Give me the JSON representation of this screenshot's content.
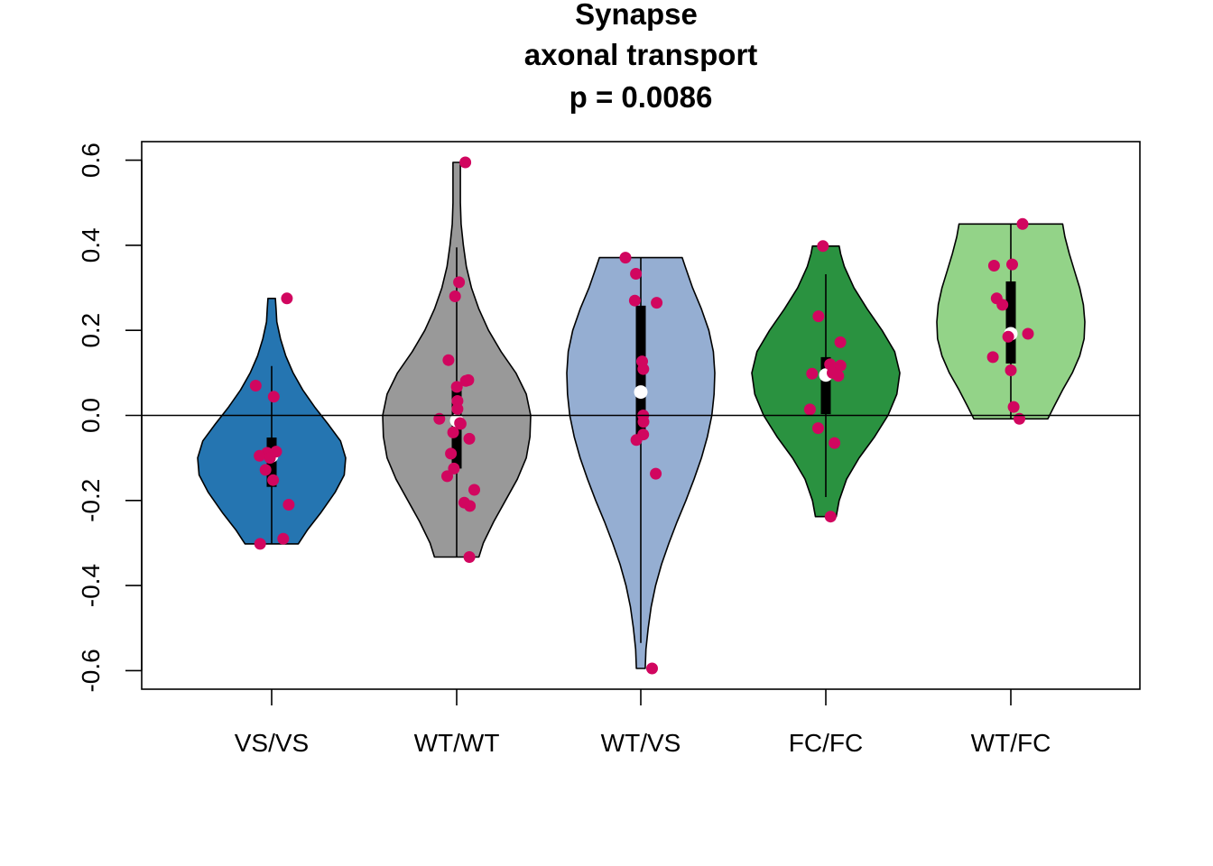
{
  "chart_data": {
    "type": "violin",
    "title_lines": [
      "Synapse",
      "axonal transport",
      "p = 0.0086"
    ],
    "xlabel": "",
    "ylabel": "",
    "ylim": [
      -0.645,
      0.645
    ],
    "yticks": [
      -0.6,
      -0.4,
      -0.2,
      0.0,
      0.2,
      0.4,
      0.6
    ],
    "ytick_labels": [
      "-0.6",
      "-0.4",
      "-0.2",
      "0.0",
      "0.2",
      "0.4",
      "0.6"
    ],
    "reference_line": 0.0,
    "point_color": "#D1065F",
    "categories": [
      "VS/VS",
      "WT/WT",
      "WT/VS",
      "FC/FC",
      "WT/FC"
    ],
    "groups": [
      {
        "name": "VS/VS",
        "color": "#2575B1",
        "range": [
          -0.302,
          0.275
        ],
        "q1": -0.168,
        "q3": -0.052,
        "median": -0.095,
        "whisker": [
          -0.302,
          0.116
        ],
        "density": [
          [
            -0.302,
            0.36
          ],
          [
            -0.27,
            0.48
          ],
          [
            -0.23,
            0.66
          ],
          [
            -0.18,
            0.86
          ],
          [
            -0.14,
            0.98
          ],
          [
            -0.1,
            1.0
          ],
          [
            -0.06,
            0.93
          ],
          [
            -0.02,
            0.76
          ],
          [
            0.02,
            0.58
          ],
          [
            0.06,
            0.42
          ],
          [
            0.1,
            0.29
          ],
          [
            0.14,
            0.19
          ],
          [
            0.18,
            0.12
          ],
          [
            0.22,
            0.07
          ],
          [
            0.25,
            0.06
          ],
          [
            0.275,
            0.05
          ]
        ],
        "points": [
          0.275,
          0.07,
          0.044,
          -0.088,
          -0.1,
          -0.085,
          -0.095,
          -0.128,
          -0.152,
          -0.21,
          -0.29,
          -0.302
        ]
      },
      {
        "name": "WT/WT",
        "color": "#999999",
        "range": [
          -0.333,
          0.595
        ],
        "q1": -0.125,
        "q3": 0.065,
        "median": -0.012,
        "whisker": [
          -0.333,
          0.395
        ],
        "density": [
          [
            -0.333,
            0.3
          ],
          [
            -0.3,
            0.36
          ],
          [
            -0.25,
            0.5
          ],
          [
            -0.2,
            0.66
          ],
          [
            -0.15,
            0.82
          ],
          [
            -0.1,
            0.94
          ],
          [
            -0.05,
            0.99
          ],
          [
            0.0,
            1.0
          ],
          [
            0.05,
            0.94
          ],
          [
            0.1,
            0.8
          ],
          [
            0.15,
            0.6
          ],
          [
            0.2,
            0.43
          ],
          [
            0.25,
            0.3
          ],
          [
            0.3,
            0.2
          ],
          [
            0.35,
            0.13
          ],
          [
            0.4,
            0.09
          ],
          [
            0.45,
            0.06
          ],
          [
            0.5,
            0.05
          ],
          [
            0.55,
            0.05
          ],
          [
            0.595,
            0.05
          ]
        ],
        "points": [
          0.595,
          0.313,
          0.28,
          0.13,
          0.083,
          0.081,
          0.067,
          0.034,
          0.015,
          -0.008,
          -0.018,
          -0.02,
          -0.04,
          -0.055,
          -0.09,
          -0.125,
          -0.143,
          -0.175,
          -0.205,
          -0.213,
          -0.333
        ]
      },
      {
        "name": "WT/VS",
        "color": "#95AED2",
        "range": [
          -0.595,
          0.371
        ],
        "q1": -0.05,
        "q3": 0.258,
        "median": 0.055,
        "whisker": [
          -0.535,
          0.371
        ],
        "density": [
          [
            -0.595,
            0.06
          ],
          [
            -0.55,
            0.07
          ],
          [
            -0.5,
            0.1
          ],
          [
            -0.45,
            0.14
          ],
          [
            -0.4,
            0.2
          ],
          [
            -0.35,
            0.28
          ],
          [
            -0.3,
            0.38
          ],
          [
            -0.25,
            0.49
          ],
          [
            -0.2,
            0.61
          ],
          [
            -0.15,
            0.72
          ],
          [
            -0.1,
            0.82
          ],
          [
            -0.05,
            0.9
          ],
          [
            0.0,
            0.96
          ],
          [
            0.05,
            0.99
          ],
          [
            0.1,
            1.0
          ],
          [
            0.15,
            0.98
          ],
          [
            0.2,
            0.92
          ],
          [
            0.25,
            0.82
          ],
          [
            0.3,
            0.7
          ],
          [
            0.35,
            0.6
          ],
          [
            0.371,
            0.56
          ]
        ],
        "points": [
          0.371,
          0.333,
          0.27,
          0.265,
          0.127,
          0.109,
          0.0,
          -0.015,
          -0.045,
          -0.058,
          -0.137,
          -0.595
        ]
      },
      {
        "name": "FC/FC",
        "color": "#2A9240",
        "range": [
          -0.238,
          0.398
        ],
        "q1": 0.003,
        "q3": 0.137,
        "median": 0.095,
        "whisker": [
          -0.192,
          0.332
        ],
        "density": [
          [
            -0.238,
            0.14
          ],
          [
            -0.2,
            0.18
          ],
          [
            -0.15,
            0.28
          ],
          [
            -0.1,
            0.45
          ],
          [
            -0.05,
            0.66
          ],
          [
            0.0,
            0.84
          ],
          [
            0.05,
            0.96
          ],
          [
            0.1,
            1.0
          ],
          [
            0.15,
            0.93
          ],
          [
            0.2,
            0.76
          ],
          [
            0.25,
            0.56
          ],
          [
            0.3,
            0.38
          ],
          [
            0.35,
            0.25
          ],
          [
            0.38,
            0.2
          ],
          [
            0.398,
            0.18
          ]
        ],
        "points": [
          0.398,
          0.233,
          0.172,
          0.12,
          0.117,
          0.1,
          0.098,
          0.093,
          0.014,
          -0.03,
          -0.065,
          -0.238
        ]
      },
      {
        "name": "WT/FC",
        "color": "#93D388",
        "range": [
          -0.008,
          0.45
        ],
        "q1": 0.122,
        "q3": 0.315,
        "median": 0.192,
        "whisker": [
          -0.008,
          0.45
        ],
        "density": [
          [
            -0.008,
            0.5
          ],
          [
            0.02,
            0.58
          ],
          [
            0.06,
            0.7
          ],
          [
            0.1,
            0.83
          ],
          [
            0.14,
            0.93
          ],
          [
            0.18,
            0.99
          ],
          [
            0.22,
            1.0
          ],
          [
            0.26,
            0.98
          ],
          [
            0.3,
            0.93
          ],
          [
            0.34,
            0.86
          ],
          [
            0.38,
            0.79
          ],
          [
            0.42,
            0.73
          ],
          [
            0.45,
            0.7
          ]
        ],
        "points": [
          0.45,
          0.355,
          0.352,
          0.275,
          0.26,
          0.192,
          0.185,
          0.137,
          0.106,
          0.02,
          -0.008
        ]
      }
    ]
  }
}
